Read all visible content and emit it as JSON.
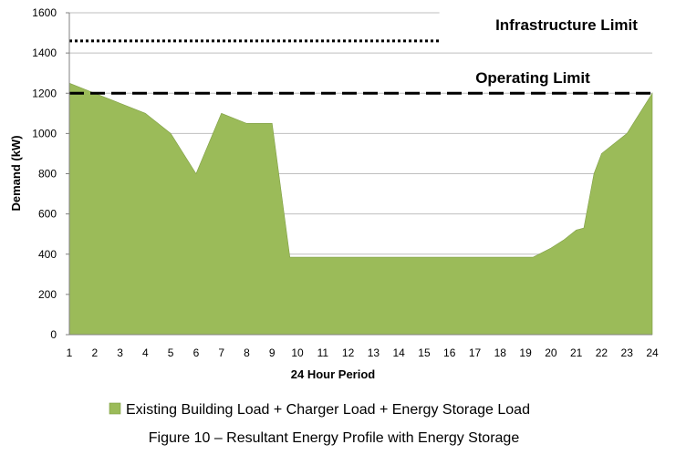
{
  "chart_data": {
    "type": "area",
    "title": "",
    "xlabel": "24 Hour Period",
    "ylabel": "Demand (kW)",
    "x_ticks": [
      "1",
      "2",
      "3",
      "4",
      "5",
      "6",
      "7",
      "8",
      "9",
      "10",
      "11",
      "12",
      "13",
      "14",
      "15",
      "16",
      "17",
      "18",
      "19",
      "20",
      "21",
      "22",
      "23",
      "24"
    ],
    "y_ticks": [
      "0",
      "200",
      "400",
      "600",
      "800",
      "1000",
      "1200",
      "1400",
      "1600"
    ],
    "xlim": [
      1,
      24
    ],
    "ylim": [
      0,
      1600
    ],
    "grid": "horizontal",
    "series": [
      {
        "name": "Existing Building Load + Charger Load + Energy Storage Load",
        "color": "#9bbb59",
        "x": [
          1,
          2,
          3,
          4,
          5,
          6,
          7,
          8,
          9,
          9.7,
          10,
          11,
          12,
          13,
          14,
          15,
          16,
          17,
          18,
          19,
          19.3,
          20,
          20.5,
          21,
          21.3,
          21.7,
          22,
          23,
          24
        ],
        "y": [
          1250,
          1200,
          1150,
          1100,
          1000,
          800,
          1100,
          1050,
          1050,
          385,
          385,
          385,
          385,
          385,
          385,
          385,
          385,
          385,
          385,
          385,
          385,
          430,
          470,
          520,
          530,
          800,
          900,
          1000,
          1200
        ]
      }
    ],
    "reference_lines": [
      {
        "label": "Infrastructure Limit",
        "y": 1460,
        "style": "dotted",
        "x_range": [
          1,
          15.6
        ]
      },
      {
        "label": "Operating Limit",
        "y": 1200,
        "style": "dashed",
        "x_range": [
          1,
          24
        ]
      }
    ],
    "legend_position": "bottom",
    "colors": {
      "area": "#9bbb59",
      "grid": "#bfbfbf",
      "axis": "#808080"
    }
  },
  "caption": "Figure 10 – Resultant Energy Profile with Energy Storage"
}
